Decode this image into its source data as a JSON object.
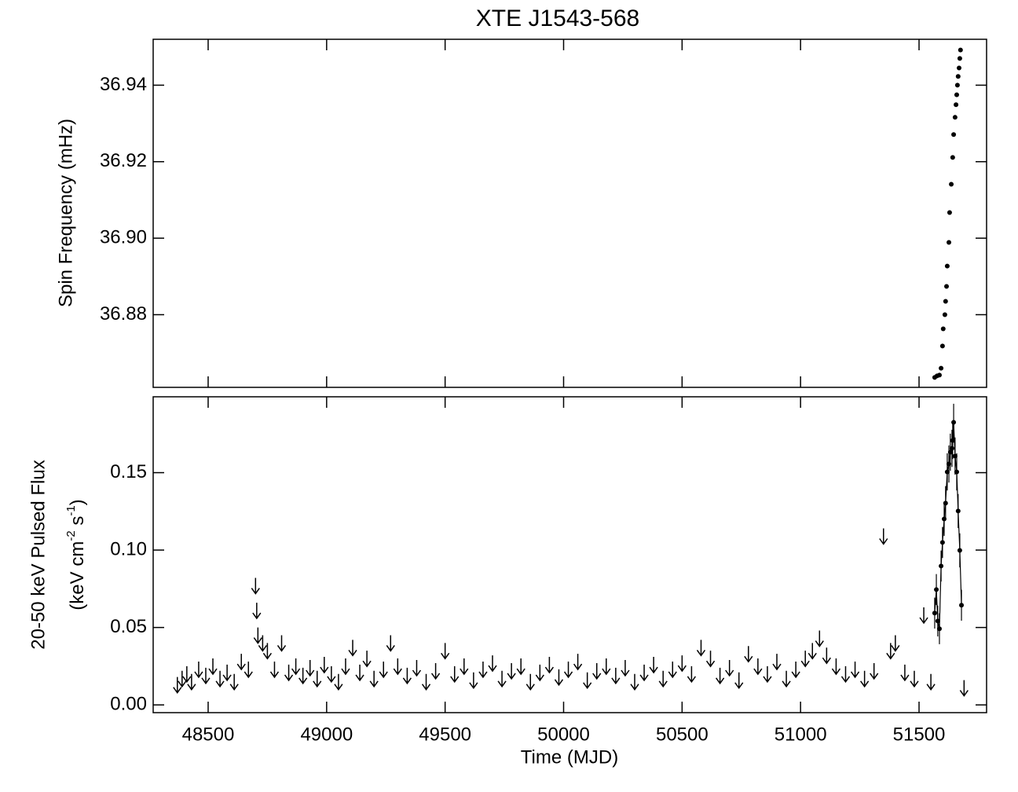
{
  "chart_data": [
    {
      "type": "scatter",
      "title": "XTE J1543-568",
      "ylabel": "Spin Frequency (mHz)",
      "color": "#000000",
      "x": [
        51566,
        51576,
        51586,
        51593,
        51599,
        51602,
        51609,
        51612,
        51616,
        51619,
        51626,
        51629,
        51636,
        51642,
        51646,
        51652,
        51656,
        51659,
        51662,
        51665,
        51669,
        51672,
        51675
      ],
      "values": [
        36.8636,
        36.864,
        36.8642,
        36.866,
        36.8718,
        36.8763,
        36.88,
        36.8835,
        36.8874,
        36.8927,
        36.8989,
        36.9067,
        36.9141,
        36.9211,
        36.9271,
        36.9316,
        36.9349,
        36.9375,
        36.94,
        36.9423,
        36.9445,
        36.947,
        36.9492
      ],
      "xlim": [
        48268,
        51785
      ],
      "ylim": [
        36.861,
        36.952
      ],
      "xticks": [
        48500,
        49000,
        49500,
        50000,
        50500,
        51000,
        51500
      ],
      "yticks": [
        36.88,
        {
          "value": 36.9,
          "label": "36.90"
        },
        36.92,
        36.94
      ]
    },
    {
      "type": "errorbar",
      "xlabel": "Time (MJD)",
      "ylabel": "20-50 keV Pulsed Flux",
      "ylabel2_parts": [
        {
          "text": "(keV cm",
          "sup": false
        },
        {
          "text": "-2",
          "sup": true
        },
        {
          "text": " s",
          "sup": false
        },
        {
          "text": "-1",
          "sup": true
        },
        {
          "text": ")",
          "sup": false
        }
      ],
      "color": "#000000",
      "xlim": [
        48268,
        51785
      ],
      "ylim": [
        -0.005,
        0.199
      ],
      "xticks": [
        48500,
        49000,
        49500,
        50000,
        50500,
        51000,
        51500
      ],
      "yticks": [
        {
          "value": 0,
          "label": "0.00"
        },
        0.05,
        {
          "value": 0.1,
          "label": "0.10"
        },
        0.15
      ],
      "series": [
        {
          "kind": "upper_limit",
          "x": [
            48370,
            48390,
            48410,
            48430,
            48460,
            48490,
            48520,
            48550,
            48580,
            48610,
            48640,
            48670,
            48700,
            48705,
            48710,
            48730,
            48750,
            48780,
            48810,
            48840,
            48870,
            48900,
            48930,
            48960,
            48990,
            49020,
            49050,
            49080,
            49110,
            49140,
            49170,
            49200,
            49240,
            49270,
            49300,
            49340,
            49380,
            49420,
            49460,
            49500,
            49540,
            49580,
            49620,
            49660,
            49700,
            49740,
            49780,
            49820,
            49860,
            49900,
            49940,
            49980,
            50020,
            50060,
            50100,
            50140,
            50180,
            50220,
            50260,
            50300,
            50340,
            50380,
            50420,
            50460,
            50500,
            50540,
            50580,
            50620,
            50660,
            50700,
            50740,
            50780,
            50820,
            50860,
            50900,
            50940,
            50980,
            51020,
            51050,
            51080,
            51110,
            51150,
            51190,
            51230,
            51270,
            51310,
            51350,
            51380,
            51400,
            51440,
            51480,
            51520,
            51550,
            51690
          ],
          "values": [
            0.018,
            0.022,
            0.025,
            0.02,
            0.028,
            0.024,
            0.03,
            0.022,
            0.026,
            0.02,
            0.033,
            0.028,
            0.082,
            0.066,
            0.05,
            0.045,
            0.04,
            0.028,
            0.045,
            0.026,
            0.03,
            0.024,
            0.029,
            0.022,
            0.031,
            0.025,
            0.02,
            0.03,
            0.042,
            0.026,
            0.035,
            0.022,
            0.028,
            0.045,
            0.03,
            0.024,
            0.029,
            0.02,
            0.027,
            0.04,
            0.025,
            0.03,
            0.021,
            0.028,
            0.032,
            0.022,
            0.027,
            0.03,
            0.02,
            0.026,
            0.031,
            0.023,
            0.028,
            0.033,
            0.021,
            0.027,
            0.03,
            0.024,
            0.029,
            0.02,
            0.026,
            0.031,
            0.022,
            0.028,
            0.032,
            0.025,
            0.042,
            0.035,
            0.024,
            0.029,
            0.021,
            0.038,
            0.03,
            0.025,
            0.033,
            0.022,
            0.028,
            0.035,
            0.04,
            0.048,
            0.037,
            0.03,
            0.025,
            0.028,
            0.022,
            0.027,
            0.114,
            0.04,
            0.045,
            0.026,
            0.022,
            0.063,
            0.02,
            0.016
          ]
        },
        {
          "kind": "detection",
          "x": [
            51566,
            51573,
            51579,
            51586,
            51593,
            51599,
            51606,
            51612,
            51619,
            51626,
            51632,
            51639,
            51642,
            51646,
            51652,
            51659,
            51665,
            51672,
            51679
          ],
          "values": [
            0.0593,
            0.0745,
            0.0542,
            0.0492,
            0.0897,
            0.1049,
            0.1201,
            0.1303,
            0.1505,
            0.1556,
            0.1632,
            0.1657,
            0.1708,
            0.1825,
            0.1607,
            0.1505,
            0.1252,
            0.0998,
            0.0644
          ],
          "errors": [
            0.01,
            0.01,
            0.01,
            0.01,
            0.01,
            0.01,
            0.011,
            0.011,
            0.012,
            0.012,
            0.012,
            0.012,
            0.012,
            0.012,
            0.012,
            0.012,
            0.011,
            0.011,
            0.01
          ]
        }
      ]
    }
  ]
}
